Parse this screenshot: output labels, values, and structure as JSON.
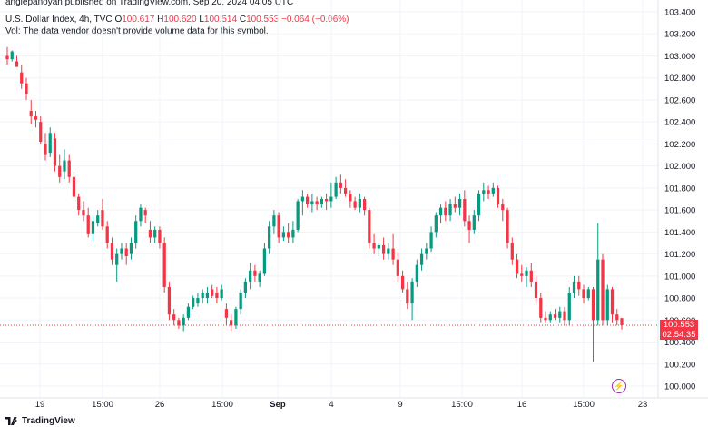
{
  "header": {
    "publish": "angiepanoyan published on TradingView.com, Sep 20, 2024 04:05 UTC",
    "symbol": "U.S. Dollar Index, 4h, TVC",
    "o_label": "O",
    "o_value": "100.617",
    "h_label": "H",
    "h_value": "100.620",
    "l_label": "L",
    "l_value": "100.514",
    "c_label": "C",
    "c_value": "100.553",
    "change": "−0.064 (−0.06%)",
    "vol_note": "Vol: The data vendor doesn't provide volume data for this symbol."
  },
  "price_tag": {
    "price": "100.553",
    "countdown": "02:54:35"
  },
  "footer": {
    "logo_text": "TradingView"
  },
  "colors": {
    "up": "#089981",
    "down": "#f23645",
    "grid": "#f0f3fa",
    "last_line": "#f23645",
    "bolt": "#9c27b0"
  },
  "icons": {
    "logo": "tradingview-logo-icon",
    "alert": "lightning-icon"
  },
  "chart_data": {
    "type": "candlestick",
    "title": "U.S. Dollar Index, 4h, TVC",
    "y_ticks": [
      "103.400",
      "103.200",
      "103.000",
      "102.800",
      "102.600",
      "102.400",
      "102.200",
      "102.000",
      "101.800",
      "101.600",
      "101.400",
      "101.200",
      "101.000",
      "100.800",
      "100.600",
      "100.400",
      "100.200",
      "100.000"
    ],
    "x_ticks": [
      {
        "label": "19",
        "bold": false
      },
      {
        "label": "15:00",
        "bold": false
      },
      {
        "label": "26",
        "bold": false
      },
      {
        "label": "15:00",
        "bold": false
      },
      {
        "label": "Sep",
        "bold": true
      },
      {
        "label": "4",
        "bold": false
      },
      {
        "label": "9",
        "bold": false
      },
      {
        "label": "15:00",
        "bold": false
      },
      {
        "label": "16",
        "bold": false
      },
      {
        "label": "15:00",
        "bold": false
      },
      {
        "label": "23",
        "bold": false
      }
    ],
    "ylim": [
      99.98,
      103.42
    ],
    "last_price": 100.553,
    "candles": [
      [
        103.0,
        103.08,
        102.92,
        102.97
      ],
      [
        102.97,
        103.05,
        102.95,
        103.04
      ],
      [
        102.95,
        103.0,
        102.9,
        102.9
      ],
      [
        102.85,
        102.92,
        102.7,
        102.75
      ],
      [
        102.75,
        102.8,
        102.6,
        102.65
      ],
      [
        102.5,
        102.6,
        102.38,
        102.45
      ],
      [
        102.45,
        102.5,
        102.35,
        102.42
      ],
      [
        102.4,
        102.45,
        102.2,
        102.22
      ],
      [
        102.2,
        102.3,
        102.05,
        102.1
      ],
      [
        102.12,
        102.35,
        102.08,
        102.3
      ],
      [
        102.25,
        102.3,
        101.95,
        102.0
      ],
      [
        102.0,
        102.1,
        101.85,
        101.9
      ],
      [
        101.95,
        102.15,
        101.88,
        102.05
      ],
      [
        102.05,
        102.1,
        101.85,
        101.9
      ],
      [
        101.9,
        101.95,
        101.7,
        101.72
      ],
      [
        101.72,
        101.75,
        101.55,
        101.6
      ],
      [
        101.6,
        101.68,
        101.5,
        101.55
      ],
      [
        101.55,
        101.62,
        101.35,
        101.38
      ],
      [
        101.38,
        101.55,
        101.32,
        101.5
      ],
      [
        101.48,
        101.6,
        101.45,
        101.55
      ],
      [
        101.6,
        101.7,
        101.42,
        101.45
      ],
      [
        101.45,
        101.5,
        101.25,
        101.3
      ],
      [
        101.3,
        101.35,
        101.1,
        101.15
      ],
      [
        101.1,
        101.25,
        100.95,
        101.2
      ],
      [
        101.2,
        101.3,
        101.15,
        101.25
      ],
      [
        101.25,
        101.3,
        101.1,
        101.18
      ],
      [
        101.2,
        101.35,
        101.15,
        101.3
      ],
      [
        101.3,
        101.55,
        101.25,
        101.5
      ],
      [
        101.5,
        101.65,
        101.45,
        101.62
      ],
      [
        101.6,
        101.62,
        101.48,
        101.55
      ],
      [
        101.42,
        101.5,
        101.3,
        101.35
      ],
      [
        101.35,
        101.45,
        101.3,
        101.42
      ],
      [
        101.42,
        101.45,
        101.25,
        101.3
      ],
      [
        101.3,
        101.35,
        100.85,
        100.9
      ],
      [
        100.9,
        100.95,
        100.6,
        100.65
      ],
      [
        100.65,
        100.7,
        100.55,
        100.6
      ],
      [
        100.6,
        100.62,
        100.52,
        100.55
      ],
      [
        100.55,
        100.65,
        100.5,
        100.62
      ],
      [
        100.62,
        100.75,
        100.6,
        100.72
      ],
      [
        100.72,
        100.82,
        100.7,
        100.8
      ],
      [
        100.75,
        100.85,
        100.72,
        100.8
      ],
      [
        100.8,
        100.88,
        100.75,
        100.85
      ],
      [
        100.8,
        100.9,
        100.75,
        100.85
      ],
      [
        100.88,
        100.92,
        100.8,
        100.82
      ],
      [
        100.85,
        100.9,
        100.75,
        100.8
      ],
      [
        100.8,
        100.92,
        100.78,
        100.88
      ],
      [
        100.7,
        100.75,
        100.55,
        100.62
      ],
      [
        100.6,
        100.65,
        100.5,
        100.55
      ],
      [
        100.55,
        100.72,
        100.52,
        100.7
      ],
      [
        100.7,
        100.88,
        100.65,
        100.85
      ],
      [
        100.85,
        100.98,
        100.8,
        100.95
      ],
      [
        100.95,
        101.12,
        100.88,
        101.05
      ],
      [
        101.05,
        101.1,
        100.95,
        101.0
      ],
      [
        100.95,
        101.05,
        100.9,
        101.02
      ],
      [
        101.02,
        101.3,
        101.0,
        101.25
      ],
      [
        101.25,
        101.5,
        101.2,
        101.45
      ],
      [
        101.45,
        101.6,
        101.38,
        101.55
      ],
      [
        101.55,
        101.58,
        101.3,
        101.35
      ],
      [
        101.35,
        101.45,
        101.32,
        101.4
      ],
      [
        101.4,
        101.48,
        101.3,
        101.35
      ],
      [
        101.35,
        101.5,
        101.3,
        101.42
      ],
      [
        101.42,
        101.7,
        101.4,
        101.68
      ],
      [
        101.68,
        101.78,
        101.55,
        101.72
      ],
      [
        101.72,
        101.75,
        101.62,
        101.65
      ],
      [
        101.65,
        101.75,
        101.58,
        101.68
      ],
      [
        101.68,
        101.72,
        101.6,
        101.65
      ],
      [
        101.65,
        101.72,
        101.62,
        101.7
      ],
      [
        101.7,
        101.75,
        101.6,
        101.68
      ],
      [
        101.68,
        101.85,
        101.62,
        101.72
      ],
      [
        101.72,
        101.9,
        101.7,
        101.85
      ],
      [
        101.85,
        101.92,
        101.75,
        101.8
      ],
      [
        101.8,
        101.88,
        101.72,
        101.75
      ],
      [
        101.75,
        101.78,
        101.62,
        101.68
      ],
      [
        101.68,
        101.72,
        101.6,
        101.62
      ],
      [
        101.62,
        101.75,
        101.58,
        101.7
      ],
      [
        101.7,
        101.72,
        101.55,
        101.6
      ],
      [
        101.6,
        101.62,
        101.25,
        101.3
      ],
      [
        101.3,
        101.38,
        101.2,
        101.25
      ],
      [
        101.25,
        101.3,
        101.18,
        101.28
      ],
      [
        101.28,
        101.35,
        101.15,
        101.2
      ],
      [
        101.2,
        101.3,
        101.15,
        101.25
      ],
      [
        101.25,
        101.38,
        101.1,
        101.15
      ],
      [
        101.15,
        101.22,
        100.95,
        101.0
      ],
      [
        101.0,
        101.05,
        100.85,
        100.88
      ],
      [
        100.88,
        100.95,
        100.7,
        100.75
      ],
      [
        100.75,
        100.98,
        100.6,
        100.95
      ],
      [
        100.95,
        101.15,
        100.9,
        101.1
      ],
      [
        101.1,
        101.25,
        101.05,
        101.2
      ],
      [
        101.2,
        101.3,
        101.15,
        101.25
      ],
      [
        101.25,
        101.45,
        101.22,
        101.4
      ],
      [
        101.4,
        101.58,
        101.35,
        101.55
      ],
      [
        101.55,
        101.65,
        101.48,
        101.62
      ],
      [
        101.62,
        101.68,
        101.5,
        101.55
      ],
      [
        101.55,
        101.7,
        101.5,
        101.65
      ],
      [
        101.65,
        101.72,
        101.58,
        101.62
      ],
      [
        101.62,
        101.75,
        101.55,
        101.7
      ],
      [
        101.7,
        101.78,
        101.45,
        101.5
      ],
      [
        101.5,
        101.55,
        101.3,
        101.42
      ],
      [
        101.42,
        101.6,
        101.38,
        101.55
      ],
      [
        101.55,
        101.78,
        101.5,
        101.75
      ],
      [
        101.75,
        101.85,
        101.68,
        101.78
      ],
      [
        101.78,
        101.82,
        101.7,
        101.75
      ],
      [
        101.75,
        101.85,
        101.72,
        101.8
      ],
      [
        101.8,
        101.82,
        101.62,
        101.65
      ],
      [
        101.65,
        101.7,
        101.5,
        101.6
      ],
      [
        101.6,
        101.62,
        101.25,
        101.3
      ],
      [
        101.3,
        101.35,
        101.1,
        101.15
      ],
      [
        101.15,
        101.2,
        100.98,
        101.02
      ],
      [
        101.02,
        101.1,
        100.95,
        101.0
      ],
      [
        101.0,
        101.08,
        100.9,
        101.05
      ],
      [
        101.05,
        101.12,
        100.9,
        100.95
      ],
      [
        100.95,
        101.0,
        100.75,
        100.8
      ],
      [
        100.8,
        100.85,
        100.58,
        100.62
      ],
      [
        100.62,
        100.68,
        100.58,
        100.6
      ],
      [
        100.6,
        100.68,
        100.58,
        100.65
      ],
      [
        100.65,
        100.7,
        100.6,
        100.62
      ],
      [
        100.62,
        100.72,
        100.58,
        100.68
      ],
      [
        100.68,
        100.72,
        100.55,
        100.6
      ],
      [
        100.6,
        100.9,
        100.55,
        100.85
      ],
      [
        100.85,
        101.0,
        100.8,
        100.95
      ],
      [
        100.95,
        101.0,
        100.82,
        100.88
      ],
      [
        100.88,
        100.92,
        100.75,
        100.8
      ],
      [
        100.8,
        100.9,
        100.78,
        100.88
      ],
      [
        100.88,
        100.9,
        100.22,
        100.6
      ],
      [
        100.6,
        101.48,
        100.55,
        101.15
      ],
      [
        101.15,
        101.2,
        100.55,
        100.6
      ],
      [
        100.6,
        100.92,
        100.55,
        100.88
      ],
      [
        100.88,
        100.9,
        100.58,
        100.65
      ],
      [
        100.65,
        100.7,
        100.55,
        100.6
      ],
      [
        100.617,
        100.62,
        100.514,
        100.553
      ]
    ]
  }
}
